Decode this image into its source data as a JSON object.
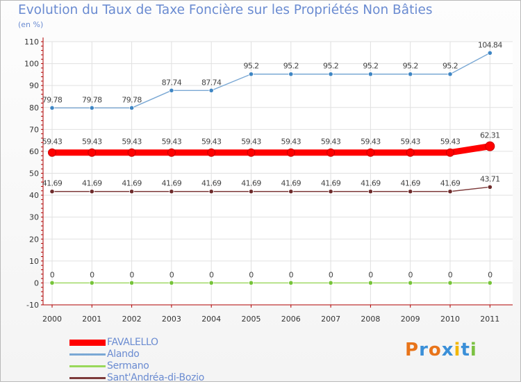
{
  "header": {
    "title": "Evolution du Taux de Taxe Foncière sur les Propriétés Non Bâties",
    "unit_label": "(en %)"
  },
  "logo": {
    "text": "Proxiti",
    "colors": [
      "#e8741a",
      "#3a8fd8",
      "#e8741a",
      "#3a8fd8",
      "#f2b705",
      "#3a8fd8",
      "#7cc142"
    ]
  },
  "chart_data": {
    "type": "line",
    "title": "Evolution du Taux de Taxe Foncière sur les Propriétés Non Bâties",
    "ylabel": "(en %)",
    "xlabel": "",
    "ylim": [
      -10,
      110
    ],
    "yticks": [
      -10,
      0,
      10,
      20,
      30,
      40,
      50,
      60,
      70,
      80,
      90,
      100,
      110
    ],
    "categories": [
      "2000",
      "2001",
      "2002",
      "2003",
      "2004",
      "2005",
      "2006",
      "2007",
      "2008",
      "2009",
      "2010",
      "2011"
    ],
    "grid": true,
    "legend": "bottom-left",
    "series": [
      {
        "name": "FAVALELLO",
        "color": "#ff0000",
        "style": "thick",
        "values": [
          59.43,
          59.43,
          59.43,
          59.43,
          59.43,
          59.43,
          59.43,
          59.43,
          59.43,
          59.43,
          59.43,
          62.31
        ],
        "labels": [
          "59.43",
          "59.43",
          "59.43",
          "59.43",
          "59.43",
          "59.43",
          "59.43",
          "59.43",
          "59.43",
          "59.43",
          "59.43",
          "62.31"
        ]
      },
      {
        "name": "Alando",
        "color": "#7aa8d4",
        "point_color": "#3f86c4",
        "style": "thin",
        "values": [
          79.78,
          79.78,
          79.78,
          87.74,
          87.74,
          95.2,
          95.2,
          95.2,
          95.2,
          95.2,
          95.2,
          104.84
        ],
        "labels": [
          "79.78",
          "79.78",
          "79.78",
          "87.74",
          "87.74",
          "95.2",
          "95.2",
          "95.2",
          "95.2",
          "95.2",
          "95.2",
          "104.84"
        ]
      },
      {
        "name": "Sermano",
        "color": "#99d85a",
        "point_color": "#77c43a",
        "style": "thin",
        "values": [
          0,
          0,
          0,
          0,
          0,
          0,
          0,
          0,
          0,
          0,
          0,
          0
        ],
        "labels": [
          "0",
          "0",
          "0",
          "0",
          "0",
          "0",
          "0",
          "0",
          "0",
          "0",
          "0",
          "0"
        ]
      },
      {
        "name": "Sant'Andréa-di-Bozio",
        "color": "#7d3a3a",
        "point_color": "#6e2b2b",
        "style": "thin",
        "values": [
          41.69,
          41.69,
          41.69,
          41.69,
          41.69,
          41.69,
          41.69,
          41.69,
          41.69,
          41.69,
          41.69,
          43.71
        ],
        "labels": [
          "41.69",
          "41.69",
          "41.69",
          "41.69",
          "41.69",
          "41.69",
          "41.69",
          "41.69",
          "41.69",
          "41.69",
          "41.69",
          "43.71"
        ]
      }
    ]
  }
}
